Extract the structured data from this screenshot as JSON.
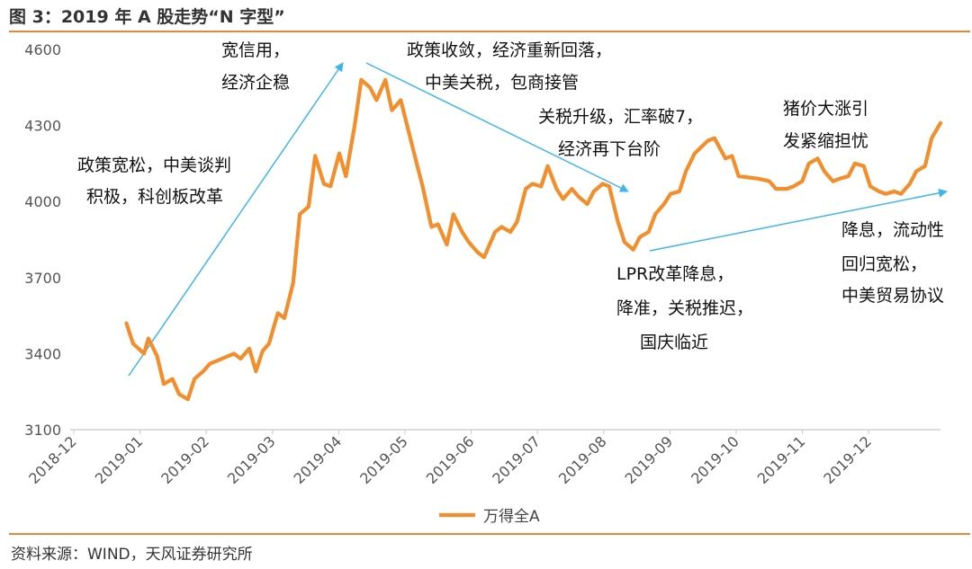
{
  "header": {
    "title": "图 3：2019 年 A 股走势“N 字型”"
  },
  "footer": {
    "source": "资料来源：WIND，天风证券研究所"
  },
  "colors": {
    "line": "#f28e2b",
    "arrow": "#3fb6ea",
    "rule": "#e8873a"
  },
  "annotations": [
    {
      "id": "policy-easing",
      "lines": [
        "政策宽松，中美谈判",
        "积极，科创板改革"
      ]
    },
    {
      "id": "credit-easing",
      "lines": [
        "宽信用，",
        "经济企稳"
      ]
    },
    {
      "id": "policy-tightening",
      "lines": [
        "政策收敛，经济重新回落，",
        "中美关税，包商接管"
      ]
    },
    {
      "id": "tariff-upgrade",
      "lines": [
        "关税升级，汇率破7，",
        "经济再下台阶"
      ]
    },
    {
      "id": "pork-price",
      "lines": [
        "猪价大涨引",
        "发紧缩担忧"
      ]
    },
    {
      "id": "lpr-reform",
      "lines": [
        "LPR改革降息，",
        "降准，关税推迟，",
        "国庆临近"
      ]
    },
    {
      "id": "rate-cut",
      "lines": [
        "降息，流动性",
        "回归宽松，",
        "中美贸易协议"
      ]
    }
  ],
  "chart_data": {
    "type": "line",
    "title": "",
    "xlabel": "",
    "ylabel": "",
    "ylim": [
      3100,
      4600
    ],
    "yticks": [
      3100,
      3400,
      3700,
      4000,
      4300,
      4600
    ],
    "xticks": [
      "2018-12",
      "2019-01",
      "2019-02",
      "2019-03",
      "2019-04",
      "2019-05",
      "2019-06",
      "2019-07",
      "2019-08",
      "2019-09",
      "2019-10",
      "2019-11",
      "2019-12"
    ],
    "legend": {
      "position": "bottom"
    },
    "series": [
      {
        "name": "万得全A",
        "x": [
          "2018-12-25",
          "2018-12-28",
          "2019-01-02",
          "2019-01-04",
          "2019-01-08",
          "2019-01-11",
          "2019-01-15",
          "2019-01-18",
          "2019-01-22",
          "2019-01-25",
          "2019-01-29",
          "2019-02-01",
          "2019-02-12",
          "2019-02-15",
          "2019-02-19",
          "2019-02-22",
          "2019-02-25",
          "2019-02-28",
          "2019-03-04",
          "2019-03-07",
          "2019-03-11",
          "2019-03-14",
          "2019-03-18",
          "2019-03-21",
          "2019-03-25",
          "2019-03-28",
          "2019-04-01",
          "2019-04-04",
          "2019-04-08",
          "2019-04-11",
          "2019-04-15",
          "2019-04-18",
          "2019-04-22",
          "2019-04-25",
          "2019-04-29",
          "2019-05-06",
          "2019-05-09",
          "2019-05-13",
          "2019-05-16",
          "2019-05-20",
          "2019-05-23",
          "2019-05-27",
          "2019-05-30",
          "2019-06-03",
          "2019-06-06",
          "2019-06-11",
          "2019-06-14",
          "2019-06-18",
          "2019-06-21",
          "2019-06-25",
          "2019-06-28",
          "2019-07-02",
          "2019-07-05",
          "2019-07-09",
          "2019-07-12",
          "2019-07-16",
          "2019-07-19",
          "2019-07-23",
          "2019-07-26",
          "2019-07-30",
          "2019-08-02",
          "2019-08-06",
          "2019-08-09",
          "2019-08-13",
          "2019-08-16",
          "2019-08-20",
          "2019-08-23",
          "2019-08-27",
          "2019-08-30",
          "2019-09-03",
          "2019-09-06",
          "2019-09-10",
          "2019-09-16",
          "2019-09-19",
          "2019-09-24",
          "2019-09-27",
          "2019-09-30",
          "2019-10-09",
          "2019-10-14",
          "2019-10-17",
          "2019-10-22",
          "2019-10-25",
          "2019-10-29",
          "2019-11-01",
          "2019-11-05",
          "2019-11-08",
          "2019-11-12",
          "2019-11-15",
          "2019-11-19",
          "2019-11-22",
          "2019-11-26",
          "2019-11-29",
          "2019-12-03",
          "2019-12-06",
          "2019-12-10",
          "2019-12-13",
          "2019-12-17",
          "2019-12-20",
          "2019-12-24",
          "2019-12-27",
          "2019-12-31"
        ],
        "values": [
          3520,
          3440,
          3400,
          3460,
          3390,
          3280,
          3300,
          3240,
          3220,
          3300,
          3330,
          3360,
          3400,
          3380,
          3420,
          3330,
          3410,
          3440,
          3560,
          3540,
          3680,
          3950,
          3980,
          4180,
          4070,
          4060,
          4190,
          4100,
          4300,
          4480,
          4450,
          4400,
          4480,
          4360,
          4400,
          4160,
          4060,
          3900,
          3910,
          3830,
          3950,
          3880,
          3840,
          3800,
          3780,
          3880,
          3900,
          3880,
          3920,
          4050,
          4070,
          4060,
          4140,
          4050,
          4010,
          4050,
          4020,
          3990,
          4040,
          4070,
          4060,
          3920,
          3840,
          3810,
          3860,
          3880,
          3950,
          3990,
          4030,
          4040,
          4120,
          4190,
          4240,
          4250,
          4170,
          4180,
          4100,
          4090,
          4080,
          4050,
          4050,
          4060,
          4080,
          4150,
          4170,
          4120,
          4080,
          4090,
          4100,
          4150,
          4140,
          4060,
          4040,
          4030,
          4040,
          4030,
          4070,
          4120,
          4140,
          4250,
          4310
        ]
      }
    ]
  }
}
